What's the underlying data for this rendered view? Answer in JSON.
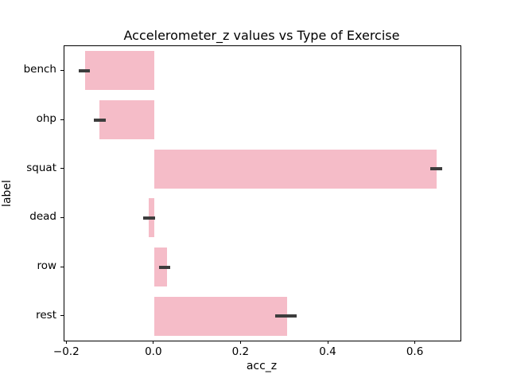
{
  "figure": {
    "background_color": "#ffffff",
    "spine_color": "#000000"
  },
  "chart_data": {
    "type": "bar",
    "orientation": "horizontal",
    "title": "Accelerometer_z values vs Type of Exercise",
    "xlabel": "acc_z",
    "ylabel": "label",
    "categories": [
      "bench",
      "ohp",
      "squat",
      "dead",
      "row",
      "rest"
    ],
    "values": [
      -0.158,
      -0.126,
      0.648,
      -0.013,
      0.03,
      0.305
    ],
    "error_intervals": [
      [
        -0.173,
        -0.147
      ],
      [
        -0.139,
        -0.111
      ],
      [
        0.633,
        0.661
      ],
      [
        -0.026,
        0.002
      ],
      [
        0.012,
        0.037
      ],
      [
        0.277,
        0.327
      ]
    ],
    "xlim": [
      -0.206,
      0.703
    ],
    "xticks": {
      "values": [
        -0.2,
        0.0,
        0.2,
        0.4,
        0.6
      ],
      "labels": [
        "−0.2",
        "0.0",
        "0.2",
        "0.4",
        "0.6"
      ]
    },
    "grid": false,
    "legend": "none",
    "bar_width_fraction": 0.8,
    "bar_color": "#f5bcc8",
    "error_bar_color": "#3d3d3d"
  }
}
